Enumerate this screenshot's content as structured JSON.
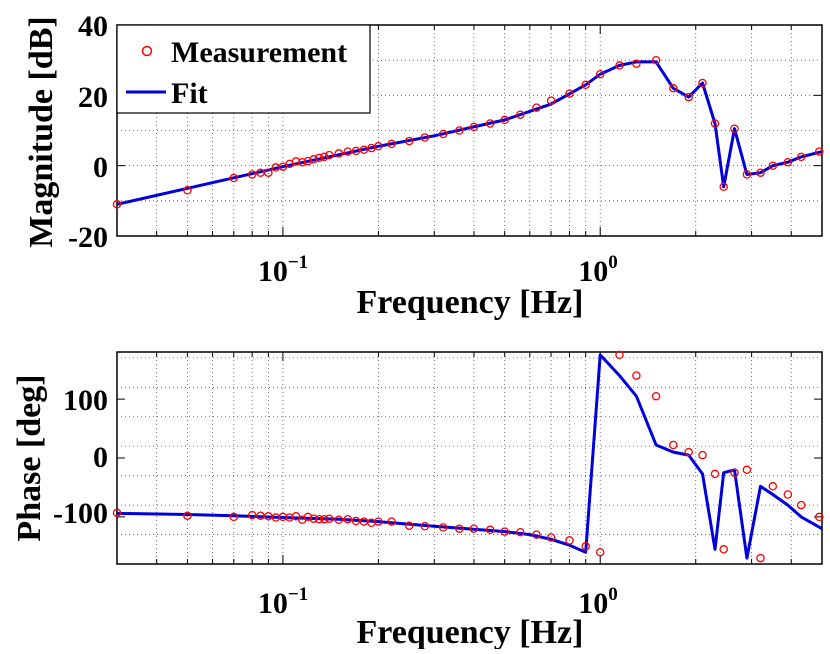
{
  "colors": {
    "measurement": "#ff0000",
    "fit": "#0000dd",
    "axis": "#000000",
    "grid": "#555555"
  },
  "chart_data": [
    {
      "type": "line",
      "title": "",
      "xlabel": "Frequency [Hz]",
      "ylabel": "Magnitude [dB]",
      "xscale": "log",
      "xlim": [
        0.03,
        5
      ],
      "ylim": [
        -20,
        40
      ],
      "yticks": [
        -20,
        0,
        20,
        40
      ],
      "xticks": [
        0.1,
        1
      ],
      "xtick_labels": [
        "10",
        "10"
      ],
      "xtick_exponents": [
        "−1",
        "0"
      ],
      "grid": true,
      "legend": {
        "position": "top-left",
        "entries": [
          "Measurement",
          "Fit"
        ]
      },
      "series": [
        {
          "name": "Measurement",
          "style": "markers",
          "x": [
            0.03,
            0.05,
            0.07,
            0.08,
            0.085,
            0.09,
            0.095,
            0.1,
            0.105,
            0.11,
            0.115,
            0.12,
            0.125,
            0.13,
            0.135,
            0.14,
            0.15,
            0.16,
            0.17,
            0.18,
            0.19,
            0.2,
            0.22,
            0.25,
            0.28,
            0.32,
            0.36,
            0.4,
            0.45,
            0.5,
            0.56,
            0.63,
            0.7,
            0.8,
            0.9,
            1.0,
            1.15,
            1.3,
            1.5,
            1.7,
            1.9,
            2.1,
            2.3,
            2.45,
            2.65,
            2.9,
            3.2,
            3.5,
            3.9,
            4.3,
            4.9
          ],
          "y": [
            -11.0,
            -7.0,
            -3.5,
            -2.5,
            -2.0,
            -2.0,
            -0.5,
            -0.3,
            0.5,
            1.2,
            1.0,
            1.3,
            1.8,
            2.2,
            2.5,
            3.0,
            3.5,
            4.0,
            4.2,
            4.5,
            5.0,
            5.5,
            6.2,
            7.0,
            8.0,
            9.0,
            10.0,
            11.0,
            12.0,
            13.0,
            14.5,
            16.5,
            18.5,
            20.5,
            23.0,
            26.0,
            28.5,
            29.0,
            30.0,
            22.0,
            19.5,
            23.5,
            12.0,
            -6.0,
            10.5,
            -2.5,
            -2.0,
            0.0,
            1.0,
            2.5,
            4.0
          ]
        },
        {
          "name": "Fit",
          "style": "line",
          "x": [
            0.03,
            0.1,
            0.2,
            0.3,
            0.5,
            0.7,
            0.9,
            1.0,
            1.15,
            1.3,
            1.5,
            1.7,
            1.9,
            2.1,
            2.3,
            2.45,
            2.65,
            2.9,
            3.2,
            3.5,
            3.9,
            4.3,
            5.0
          ],
          "y": [
            -11.0,
            -0.3,
            5.5,
            8.5,
            13.0,
            17.5,
            23.0,
            26.0,
            28.5,
            29.5,
            29.5,
            22.0,
            19.5,
            23.5,
            12.0,
            -6.0,
            10.5,
            -2.5,
            -2.0,
            0.0,
            1.0,
            2.5,
            4.0
          ]
        }
      ]
    },
    {
      "type": "line",
      "title": "",
      "xlabel": "Frequency [Hz]",
      "ylabel": "Phase [deg]",
      "xscale": "log",
      "xlim": [
        0.03,
        5
      ],
      "ylim": [
        -180,
        180
      ],
      "yticks": [
        -100,
        0,
        100
      ],
      "xticks": [
        0.1,
        1
      ],
      "xtick_labels": [
        "10",
        "10"
      ],
      "xtick_exponents": [
        "−1",
        "0"
      ],
      "grid": true,
      "series": [
        {
          "name": "Measurement",
          "style": "markers",
          "x": [
            0.03,
            0.05,
            0.07,
            0.08,
            0.085,
            0.09,
            0.095,
            0.1,
            0.105,
            0.11,
            0.115,
            0.12,
            0.125,
            0.13,
            0.135,
            0.14,
            0.15,
            0.16,
            0.17,
            0.18,
            0.19,
            0.2,
            0.22,
            0.25,
            0.28,
            0.32,
            0.36,
            0.4,
            0.45,
            0.5,
            0.56,
            0.63,
            0.7,
            0.8,
            0.9,
            1.0,
            1.15,
            1.3,
            1.5,
            1.7,
            1.9,
            2.1,
            2.3,
            2.45,
            2.65,
            2.9,
            3.2,
            3.5,
            3.9,
            4.3,
            4.9
          ],
          "y": [
            -93,
            -98,
            -100,
            -97,
            -98,
            -99,
            -101,
            -100,
            -101,
            -99,
            -105,
            -100,
            -103,
            -104,
            -104,
            -103,
            -105,
            -104,
            -107,
            -108,
            -110,
            -108,
            -108,
            -115,
            -116,
            -118,
            -120,
            -120,
            -122,
            -125,
            -126,
            -130,
            -135,
            -140,
            -150,
            -160,
            175,
            140,
            105,
            22,
            10,
            5,
            -27,
            -155,
            -25,
            -20,
            -170,
            -48,
            -62,
            -80,
            -100
          ]
        },
        {
          "name": "Fit",
          "style": "line",
          "x": [
            0.03,
            0.05,
            0.07,
            0.1,
            0.15,
            0.2,
            0.3,
            0.4,
            0.5,
            0.6,
            0.7,
            0.8,
            0.9,
            1.0,
            1.15,
            1.3,
            1.5,
            1.7,
            1.9,
            2.1,
            2.3,
            2.45,
            2.65,
            2.9,
            3.2,
            3.5,
            3.9,
            4.3,
            5.0
          ],
          "y": [
            -94,
            -96,
            -98,
            -101,
            -104,
            -108,
            -116,
            -121,
            -125,
            -130,
            -138,
            -148,
            -160,
            175,
            140,
            105,
            22,
            10,
            5,
            -27,
            -155,
            -25,
            -20,
            -170,
            -48,
            -62,
            -80,
            -100,
            -120
          ]
        }
      ]
    }
  ]
}
